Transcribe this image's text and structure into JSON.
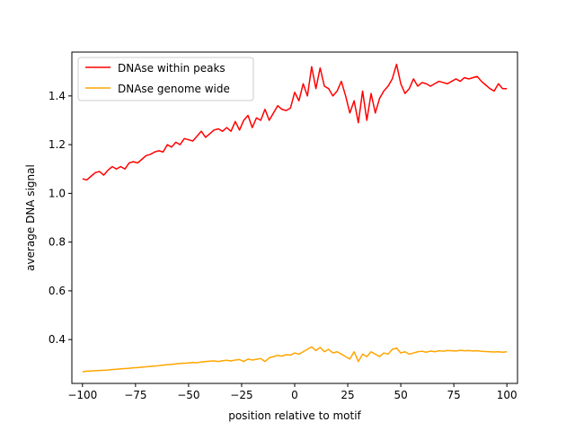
{
  "chart_data": {
    "type": "line",
    "title": "",
    "xlabel": "position relative to motif",
    "ylabel": "average DNA signal",
    "xlim": [
      -105,
      105
    ],
    "ylim": [
      0.22,
      1.58
    ],
    "xticks": [
      -100,
      -75,
      -50,
      -25,
      0,
      25,
      50,
      75,
      100
    ],
    "xtick_labels": [
      "−100",
      "−75",
      "−50",
      "−25",
      "0",
      "25",
      "50",
      "75",
      "100"
    ],
    "yticks": [
      0.4,
      0.6,
      0.8,
      1.0,
      1.2,
      1.4
    ],
    "ytick_labels": [
      "0.4",
      "0.6",
      "0.8",
      "1.0",
      "1.2",
      "1.4"
    ],
    "grid": false,
    "legend_position": "top-left",
    "series": [
      {
        "name": "DNAse within peaks",
        "color": "#ff0000",
        "x": [
          -100,
          -98,
          -96,
          -94,
          -92,
          -90,
          -88,
          -86,
          -84,
          -82,
          -80,
          -78,
          -76,
          -74,
          -72,
          -70,
          -68,
          -66,
          -64,
          -62,
          -60,
          -58,
          -56,
          -54,
          -52,
          -50,
          -48,
          -46,
          -44,
          -42,
          -40,
          -38,
          -36,
          -34,
          -32,
          -30,
          -28,
          -26,
          -24,
          -22,
          -20,
          -18,
          -16,
          -14,
          -12,
          -10,
          -8,
          -6,
          -4,
          -2,
          0,
          2,
          4,
          6,
          8,
          10,
          12,
          14,
          16,
          18,
          20,
          22,
          24,
          26,
          28,
          30,
          32,
          34,
          36,
          38,
          40,
          42,
          44,
          46,
          48,
          50,
          52,
          54,
          56,
          58,
          60,
          62,
          64,
          66,
          68,
          70,
          72,
          74,
          76,
          78,
          80,
          82,
          84,
          86,
          88,
          90,
          92,
          94,
          96,
          98,
          100
        ],
        "y": [
          1.06,
          1.055,
          1.07,
          1.085,
          1.09,
          1.075,
          1.095,
          1.11,
          1.1,
          1.11,
          1.1,
          1.125,
          1.13,
          1.125,
          1.14,
          1.155,
          1.16,
          1.17,
          1.175,
          1.17,
          1.2,
          1.19,
          1.21,
          1.2,
          1.225,
          1.22,
          1.215,
          1.235,
          1.255,
          1.23,
          1.245,
          1.26,
          1.265,
          1.255,
          1.27,
          1.255,
          1.295,
          1.26,
          1.3,
          1.32,
          1.27,
          1.31,
          1.3,
          1.345,
          1.3,
          1.33,
          1.36,
          1.345,
          1.34,
          1.35,
          1.415,
          1.38,
          1.45,
          1.4,
          1.52,
          1.43,
          1.515,
          1.44,
          1.43,
          1.4,
          1.42,
          1.46,
          1.4,
          1.33,
          1.38,
          1.29,
          1.42,
          1.3,
          1.41,
          1.33,
          1.39,
          1.42,
          1.44,
          1.47,
          1.53,
          1.45,
          1.41,
          1.43,
          1.47,
          1.44,
          1.455,
          1.45,
          1.44,
          1.45,
          1.46,
          1.455,
          1.45,
          1.46,
          1.47,
          1.46,
          1.475,
          1.47,
          1.475,
          1.48,
          1.46,
          1.445,
          1.43,
          1.42,
          1.45,
          1.43,
          1.43
        ]
      },
      {
        "name": "DNAse genome wide",
        "color": "#ffa500",
        "x": [
          -100,
          -98,
          -96,
          -94,
          -92,
          -90,
          -88,
          -86,
          -84,
          -82,
          -80,
          -78,
          -76,
          -74,
          -72,
          -70,
          -68,
          -66,
          -64,
          -62,
          -60,
          -58,
          -56,
          -54,
          -52,
          -50,
          -48,
          -46,
          -44,
          -42,
          -40,
          -38,
          -36,
          -34,
          -32,
          -30,
          -28,
          -26,
          -24,
          -22,
          -20,
          -18,
          -16,
          -14,
          -12,
          -10,
          -8,
          -6,
          -4,
          -2,
          0,
          2,
          4,
          6,
          8,
          10,
          12,
          14,
          16,
          18,
          20,
          22,
          24,
          26,
          28,
          30,
          32,
          34,
          36,
          38,
          40,
          42,
          44,
          46,
          48,
          50,
          52,
          54,
          56,
          58,
          60,
          62,
          64,
          66,
          68,
          70,
          72,
          74,
          76,
          78,
          80,
          82,
          84,
          86,
          88,
          90,
          92,
          94,
          96,
          98,
          100
        ],
        "y": [
          0.268,
          0.27,
          0.271,
          0.272,
          0.273,
          0.274,
          0.275,
          0.277,
          0.278,
          0.28,
          0.281,
          0.282,
          0.284,
          0.285,
          0.287,
          0.288,
          0.29,
          0.291,
          0.293,
          0.295,
          0.297,
          0.298,
          0.3,
          0.302,
          0.303,
          0.304,
          0.306,
          0.305,
          0.308,
          0.31,
          0.311,
          0.312,
          0.31,
          0.313,
          0.315,
          0.312,
          0.316,
          0.318,
          0.31,
          0.32,
          0.316,
          0.319,
          0.322,
          0.31,
          0.325,
          0.33,
          0.335,
          0.332,
          0.338,
          0.336,
          0.345,
          0.34,
          0.35,
          0.36,
          0.37,
          0.355,
          0.368,
          0.35,
          0.36,
          0.345,
          0.35,
          0.34,
          0.33,
          0.32,
          0.35,
          0.31,
          0.34,
          0.33,
          0.35,
          0.34,
          0.33,
          0.345,
          0.34,
          0.36,
          0.365,
          0.345,
          0.35,
          0.34,
          0.345,
          0.35,
          0.352,
          0.348,
          0.353,
          0.35,
          0.354,
          0.352,
          0.355,
          0.354,
          0.353,
          0.356,
          0.354,
          0.355,
          0.353,
          0.354,
          0.352,
          0.351,
          0.35,
          0.349,
          0.35,
          0.348,
          0.35
        ]
      }
    ]
  }
}
